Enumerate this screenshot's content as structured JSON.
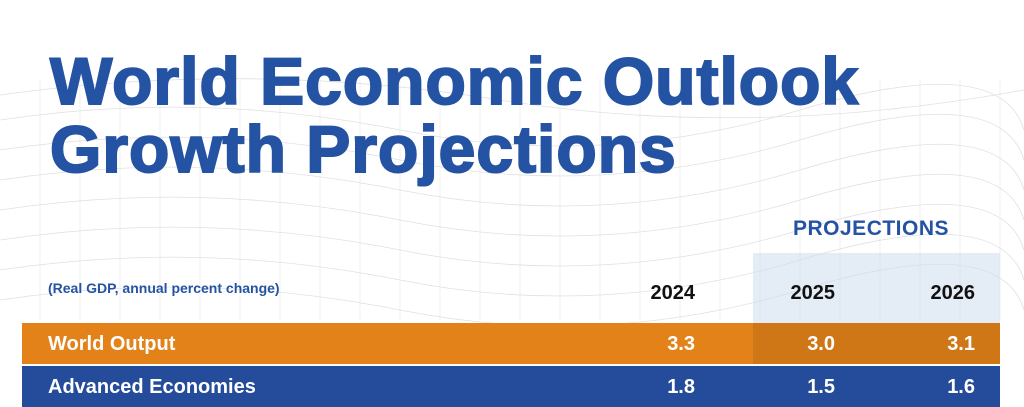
{
  "title_line1": "World Economic Outlook",
  "title_line2": "Growth Projections",
  "projections_label": "PROJECTIONS",
  "subtitle": "(Real GDP, annual percent change)",
  "years": [
    "2024",
    "2025",
    "2026"
  ],
  "rows": [
    {
      "label": "World Output",
      "values": [
        "3.3",
        "3.0",
        "3.1"
      ],
      "color": "#e4821a"
    },
    {
      "label": "Advanced Economies",
      "values": [
        "1.8",
        "1.5",
        "1.6"
      ],
      "color": "#244c9a"
    }
  ],
  "accent_color": "#2553a3"
}
